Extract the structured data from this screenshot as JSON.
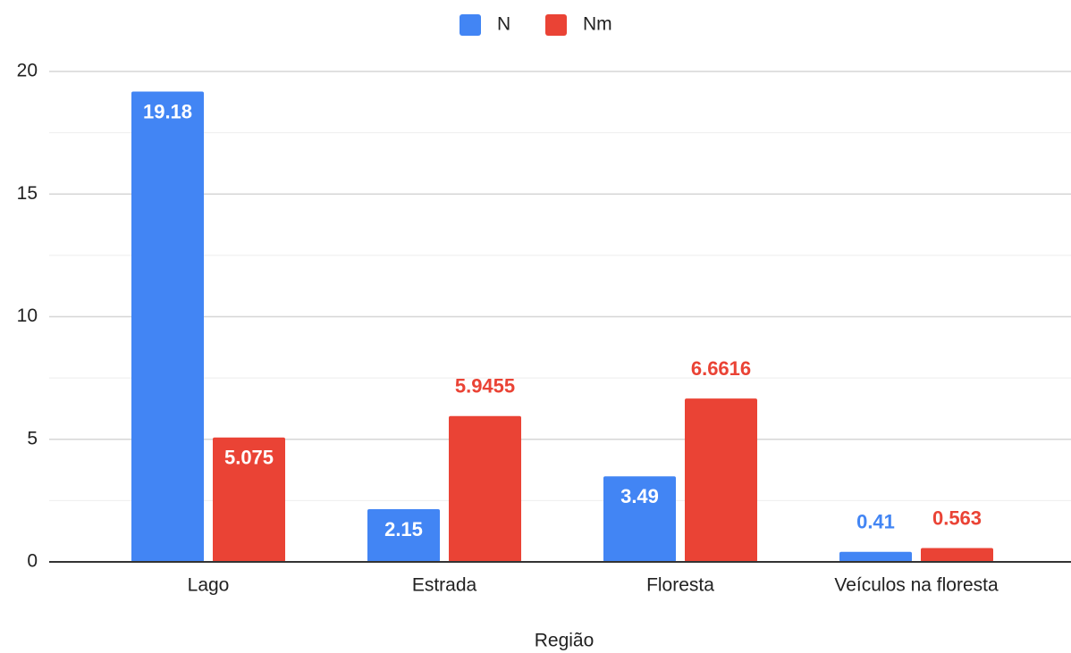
{
  "chart_data": {
    "type": "bar",
    "xlabel": "Região",
    "categories": [
      "Lago",
      "Estrada",
      "Floresta",
      "Veículos na floresta"
    ],
    "series": [
      {
        "name": "N",
        "color": "#4285f4",
        "values": [
          19.18,
          2.15,
          3.49,
          0.41
        ]
      },
      {
        "name": "Nm",
        "color": "#ea4335",
        "values": [
          5.075,
          5.9455,
          6.6616,
          0.563
        ]
      }
    ],
    "ylim": [
      0,
      20
    ],
    "yticks": [
      0,
      5,
      10,
      15,
      20
    ],
    "minor_yticks": [
      2.5,
      7.5,
      12.5,
      17.5
    ],
    "grid": true,
    "legend": "top"
  }
}
